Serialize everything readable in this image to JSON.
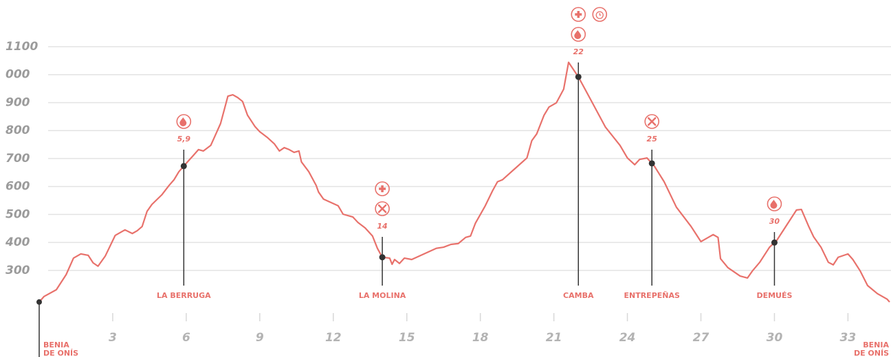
{
  "chart_data": {
    "type": "line",
    "x": [
      0,
      0.2,
      0.7,
      1.1,
      1.4,
      1.7,
      2.0,
      2.2,
      2.4,
      2.7,
      3.1,
      3.5,
      3.8,
      4.0,
      4.2,
      4.4,
      4.6,
      5.0,
      5.3,
      5.5,
      5.7,
      6.0,
      6.3,
      6.5,
      6.7,
      7.0,
      7.2,
      7.4,
      7.7,
      7.9,
      8.1,
      8.3,
      8.5,
      8.8,
      9.0,
      9.3,
      9.6,
      9.8,
      10.0,
      10.2,
      10.4,
      10.6,
      10.7,
      11.0,
      11.3,
      11.4,
      11.6,
      11.9,
      12.2,
      12.4,
      12.8,
      13.0,
      13.3,
      13.6,
      13.8,
      14.0,
      14.3,
      14.4,
      14.5,
      14.7,
      14.9,
      15.2,
      15.7,
      16.2,
      16.5,
      16.8,
      17.1,
      17.4,
      17.6,
      17.8,
      18.2,
      18.5,
      18.7,
      18.9,
      19.4,
      19.9,
      20.1,
      20.3,
      20.6,
      20.8,
      21.1,
      21.4,
      21.6,
      22.0,
      22.5,
      23.1,
      23.7,
      24.0,
      24.3,
      24.5,
      24.8,
      25.1,
      25.5,
      26.0,
      26.6,
      27.0,
      27.3,
      27.5,
      27.7,
      27.8,
      28.1,
      28.6,
      28.9,
      29.1,
      29.4,
      29.8,
      30.1,
      30.5,
      30.9,
      31.1,
      31.4,
      31.6,
      31.9,
      32.2,
      32.4,
      32.6,
      33.0,
      33.2,
      33.5,
      33.8,
      34.2,
      34.6,
      34.7
    ],
    "series": [
      {
        "color": "#e8716b",
        "values": [
          187,
          207,
          231,
          285,
          344,
          359,
          354,
          327,
          315,
          352,
          425,
          445,
          432,
          442,
          457,
          511,
          536,
          570,
          604,
          624,
          653,
          683,
          712,
          732,
          727,
          747,
          786,
          825,
          923,
          928,
          918,
          904,
          855,
          815,
          796,
          776,
          752,
          727,
          739,
          732,
          722,
          727,
          688,
          653,
          604,
          580,
          555,
          543,
          531,
          501,
          491,
          472,
          452,
          423,
          379,
          347,
          344,
          322,
          339,
          325,
          344,
          339,
          359,
          379,
          383,
          393,
          396,
          418,
          423,
          469,
          531,
          585,
          617,
          624,
          663,
          702,
          764,
          788,
          855,
          884,
          899,
          948,
          1044,
          992,
          911,
          813,
          747,
          702,
          678,
          697,
          702,
          673,
          617,
          526,
          457,
          403,
          418,
          428,
          418,
          342,
          310,
          280,
          273,
          298,
          329,
          383,
          408,
          462,
          516,
          518,
          457,
          420,
          383,
          329,
          320,
          347,
          359,
          339,
          298,
          246,
          217,
          197,
          187
        ]
      }
    ],
    "xlim": [
      0,
      34.7
    ],
    "xticks": [
      3,
      6,
      9,
      12,
      15,
      18,
      21,
      24,
      27,
      30,
      33
    ],
    "ylim": [
      150,
      1150
    ],
    "yticks": [
      300,
      400,
      500,
      600,
      700,
      800,
      900,
      {
        "value": 1000,
        "label": "000"
      },
      1100
    ],
    "grid": true,
    "markers": {
      "names": [
        "LA BERRUGA",
        "LA MOLINA",
        "CAMBA",
        "ENTREPEÑAS",
        "DEMUÉS"
      ],
      "km": [
        5.9,
        14,
        22,
        25,
        30
      ],
      "value_labels": [
        "5,9",
        "14",
        "22",
        "25",
        "30"
      ]
    },
    "start_label": [
      "BENIA",
      "DE ONÍS"
    ],
    "end_label": [
      "BENIA",
      "DE ONÍS"
    ]
  }
}
